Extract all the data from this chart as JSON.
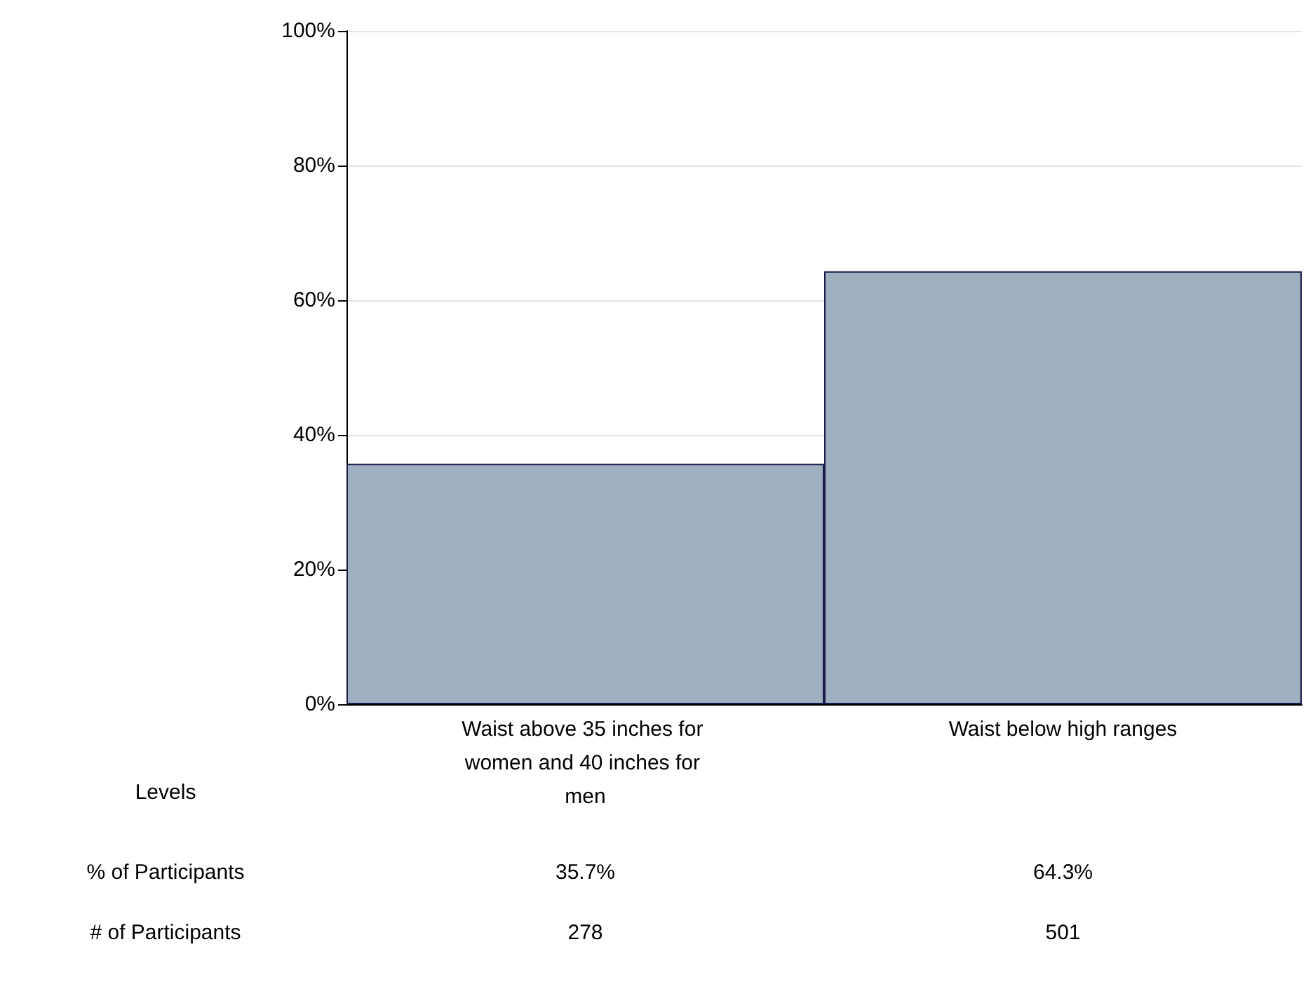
{
  "chart_data": {
    "type": "bar",
    "categories": [
      "Waist above 35 inches for women and 40 inches for men",
      "Waist below high ranges"
    ],
    "values": [
      35.7,
      64.3
    ],
    "color": "#9eb0bf",
    "value_labels": [
      "35.7%",
      "64.3%"
    ],
    "ylim": [
      0,
      100
    ],
    "yticks": [
      {
        "value": 0,
        "label": "0%"
      },
      {
        "value": 20,
        "label": "20%"
      },
      {
        "value": 40,
        "label": "40%"
      },
      {
        "value": 60,
        "label": "60%"
      },
      {
        "value": 80,
        "label": "80%"
      },
      {
        "value": 100,
        "label": "100%"
      }
    ],
    "grid": "y",
    "annotations": [
      "Levels",
      "% of Participants",
      "# of Participants",
      "278",
      "501"
    ]
  }
}
